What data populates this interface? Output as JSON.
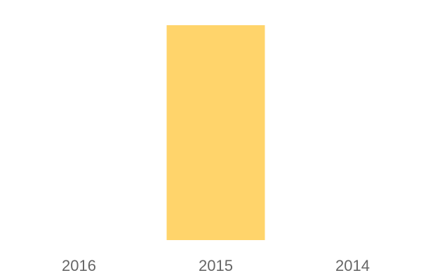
{
  "chart_data": {
    "type": "bar",
    "categories": [
      "2016",
      "2015",
      "2014"
    ],
    "values": [
      0,
      1,
      0
    ],
    "ylim": [
      0,
      1
    ],
    "grid": false,
    "legend": "none",
    "bar_color": "#FFD46B",
    "tick_color": "#666666"
  }
}
